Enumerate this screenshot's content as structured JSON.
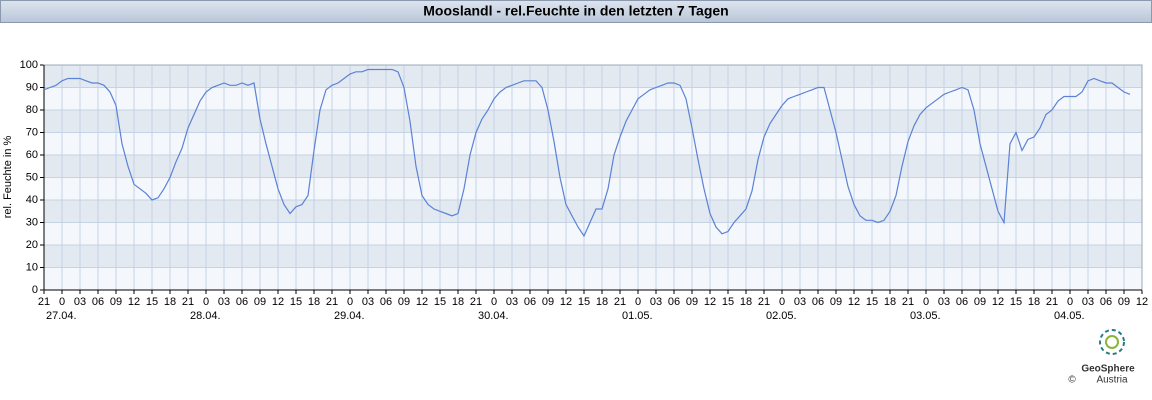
{
  "chart_data": {
    "type": "line",
    "title": "Mooslandl - rel.Feuchte in den letzten 7 Tagen",
    "ylabel": "rel. Feuchte in %",
    "color": "#5b82d6",
    "grid": true,
    "ylim": [
      0,
      100
    ],
    "yticks": [
      0,
      10,
      20,
      30,
      40,
      50,
      60,
      70,
      80,
      90,
      100
    ],
    "xlim": [
      "26.04. 21",
      "04.05. 12"
    ],
    "xticks": [
      {
        "value": "26.04. 21",
        "label": "21"
      },
      {
        "value": "27.04. 00",
        "label": "0"
      },
      {
        "value": "27.04. 03",
        "label": "03"
      },
      {
        "value": "27.04. 06",
        "label": "06"
      },
      {
        "value": "27.04. 09",
        "label": "09"
      },
      {
        "value": "27.04. 12",
        "label": "12"
      },
      {
        "value": "27.04. 15",
        "label": "15"
      },
      {
        "value": "27.04. 18",
        "label": "18"
      },
      {
        "value": "27.04. 21",
        "label": "21"
      },
      {
        "value": "28.04. 00",
        "label": "0"
      },
      {
        "value": "28.04. 03",
        "label": "03"
      },
      {
        "value": "28.04. 06",
        "label": "06"
      },
      {
        "value": "28.04. 09",
        "label": "09"
      },
      {
        "value": "28.04. 12",
        "label": "12"
      },
      {
        "value": "28.04. 15",
        "label": "15"
      },
      {
        "value": "28.04. 18",
        "label": "18"
      },
      {
        "value": "28.04. 21",
        "label": "21"
      },
      {
        "value": "29.04. 00",
        "label": "0"
      },
      {
        "value": "29.04. 03",
        "label": "03"
      },
      {
        "value": "29.04. 06",
        "label": "06"
      },
      {
        "value": "29.04. 09",
        "label": "09"
      },
      {
        "value": "29.04. 12",
        "label": "12"
      },
      {
        "value": "29.04. 15",
        "label": "15"
      },
      {
        "value": "29.04. 18",
        "label": "18"
      },
      {
        "value": "29.04. 21",
        "label": "21"
      },
      {
        "value": "30.04. 00",
        "label": "0"
      },
      {
        "value": "30.04. 03",
        "label": "03"
      },
      {
        "value": "30.04. 06",
        "label": "06"
      },
      {
        "value": "30.04. 09",
        "label": "09"
      },
      {
        "value": "30.04. 12",
        "label": "12"
      },
      {
        "value": "30.04. 15",
        "label": "15"
      },
      {
        "value": "30.04. 18",
        "label": "18"
      },
      {
        "value": "30.04. 21",
        "label": "21"
      },
      {
        "value": "01.05. 00",
        "label": "0"
      },
      {
        "value": "01.05. 03",
        "label": "03"
      },
      {
        "value": "01.05. 06",
        "label": "06"
      },
      {
        "value": "01.05. 09",
        "label": "09"
      },
      {
        "value": "01.05. 12",
        "label": "12"
      },
      {
        "value": "01.05. 15",
        "label": "15"
      },
      {
        "value": "01.05. 18",
        "label": "18"
      },
      {
        "value": "01.05. 21",
        "label": "21"
      },
      {
        "value": "02.05. 00",
        "label": "0"
      },
      {
        "value": "02.05. 03",
        "label": "03"
      },
      {
        "value": "02.05. 06",
        "label": "06"
      },
      {
        "value": "02.05. 09",
        "label": "09"
      },
      {
        "value": "02.05. 12",
        "label": "12"
      },
      {
        "value": "02.05. 15",
        "label": "15"
      },
      {
        "value": "02.05. 18",
        "label": "18"
      },
      {
        "value": "02.05. 21",
        "label": "21"
      },
      {
        "value": "03.05. 00",
        "label": "0"
      },
      {
        "value": "03.05. 03",
        "label": "03"
      },
      {
        "value": "03.05. 06",
        "label": "06"
      },
      {
        "value": "03.05. 09",
        "label": "09"
      },
      {
        "value": "03.05. 12",
        "label": "12"
      },
      {
        "value": "03.05. 15",
        "label": "15"
      },
      {
        "value": "03.05. 18",
        "label": "18"
      },
      {
        "value": "03.05. 21",
        "label": "21"
      },
      {
        "value": "04.05. 00",
        "label": "0"
      },
      {
        "value": "04.05. 03",
        "label": "03"
      },
      {
        "value": "04.05. 06",
        "label": "06"
      },
      {
        "value": "04.05. 09",
        "label": "09"
      },
      {
        "value": "04.05. 12",
        "label": "12"
      }
    ],
    "xdates": [
      {
        "value": "27.04. 00",
        "label": "27.04."
      },
      {
        "value": "28.04. 00",
        "label": "28.04."
      },
      {
        "value": "29.04. 00",
        "label": "29.04."
      },
      {
        "value": "30.04. 00",
        "label": "30.04."
      },
      {
        "value": "01.05. 00",
        "label": "01.05."
      },
      {
        "value": "02.05. 00",
        "label": "02.05."
      },
      {
        "value": "03.05. 00",
        "label": "03.05."
      },
      {
        "value": "04.05. 00",
        "label": "04.05."
      }
    ],
    "x": [
      "26.04. 21",
      "26.04. 22",
      "26.04. 23",
      "27.04. 00",
      "27.04. 01",
      "27.04. 02",
      "27.04. 03",
      "27.04. 04",
      "27.04. 05",
      "27.04. 06",
      "27.04. 07",
      "27.04. 08",
      "27.04. 09",
      "27.04. 10",
      "27.04. 11",
      "27.04. 12",
      "27.04. 13",
      "27.04. 14",
      "27.04. 15",
      "27.04. 16",
      "27.04. 17",
      "27.04. 18",
      "27.04. 19",
      "27.04. 20",
      "27.04. 21",
      "27.04. 22",
      "27.04. 23",
      "28.04. 00",
      "28.04. 01",
      "28.04. 02",
      "28.04. 03",
      "28.04. 04",
      "28.04. 05",
      "28.04. 06",
      "28.04. 07",
      "28.04. 08",
      "28.04. 09",
      "28.04. 10",
      "28.04. 11",
      "28.04. 12",
      "28.04. 13",
      "28.04. 14",
      "28.04. 15",
      "28.04. 16",
      "28.04. 17",
      "28.04. 18",
      "28.04. 19",
      "28.04. 20",
      "28.04. 21",
      "28.04. 22",
      "28.04. 23",
      "29.04. 00",
      "29.04. 01",
      "29.04. 02",
      "29.04. 03",
      "29.04. 04",
      "29.04. 05",
      "29.04. 06",
      "29.04. 07",
      "29.04. 08",
      "29.04. 09",
      "29.04. 10",
      "29.04. 11",
      "29.04. 12",
      "29.04. 13",
      "29.04. 14",
      "29.04. 15",
      "29.04. 16",
      "29.04. 17",
      "29.04. 18",
      "29.04. 19",
      "29.04. 20",
      "29.04. 21",
      "29.04. 22",
      "29.04. 23",
      "30.04. 00",
      "30.04. 01",
      "30.04. 02",
      "30.04. 03",
      "30.04. 04",
      "30.04. 05",
      "30.04. 06",
      "30.04. 07",
      "30.04. 08",
      "30.04. 09",
      "30.04. 10",
      "30.04. 11",
      "30.04. 12",
      "30.04. 13",
      "30.04. 14",
      "30.04. 15",
      "30.04. 16",
      "30.04. 17",
      "30.04. 18",
      "30.04. 19",
      "30.04. 20",
      "30.04. 21",
      "30.04. 22",
      "30.04. 23",
      "01.05. 00",
      "01.05. 01",
      "01.05. 02",
      "01.05. 03",
      "01.05. 04",
      "01.05. 05",
      "01.05. 06",
      "01.05. 07",
      "01.05. 08",
      "01.05. 09",
      "01.05. 10",
      "01.05. 11",
      "01.05. 12",
      "01.05. 13",
      "01.05. 14",
      "01.05. 15",
      "01.05. 16",
      "01.05. 17",
      "01.05. 18",
      "01.05. 19",
      "01.05. 20",
      "01.05. 21",
      "01.05. 22",
      "01.05. 23",
      "02.05. 00",
      "02.05. 01",
      "02.05. 02",
      "02.05. 03",
      "02.05. 04",
      "02.05. 05",
      "02.05. 06",
      "02.05. 07",
      "02.05. 08",
      "02.05. 09",
      "02.05. 10",
      "02.05. 11",
      "02.05. 12",
      "02.05. 13",
      "02.05. 14",
      "02.05. 15",
      "02.05. 16",
      "02.05. 17",
      "02.05. 18",
      "02.05. 19",
      "02.05. 20",
      "02.05. 21",
      "02.05. 22",
      "02.05. 23",
      "03.05. 00",
      "03.05. 01",
      "03.05. 02",
      "03.05. 03",
      "03.05. 04",
      "03.05. 05",
      "03.05. 06",
      "03.05. 07",
      "03.05. 08",
      "03.05. 09",
      "03.05. 10",
      "03.05. 11",
      "03.05. 12",
      "03.05. 13",
      "03.05. 14",
      "03.05. 15",
      "03.05. 16",
      "03.05. 17",
      "03.05. 18",
      "03.05. 19",
      "03.05. 20",
      "03.05. 21",
      "03.05. 22",
      "03.05. 23",
      "04.05. 00",
      "04.05. 01",
      "04.05. 02",
      "04.05. 03",
      "04.05. 04",
      "04.05. 05",
      "04.05. 06",
      "04.05. 07",
      "04.05. 08",
      "04.05. 09",
      "04.05. 10"
    ],
    "values": [
      89,
      90,
      91,
      93,
      94,
      94,
      94,
      93,
      92,
      92,
      91,
      88,
      82,
      65,
      55,
      47,
      45,
      43,
      40,
      41,
      45,
      50,
      57,
      63,
      72,
      78,
      84,
      88,
      90,
      91,
      92,
      91,
      91,
      92,
      91,
      92,
      76,
      65,
      55,
      45,
      38,
      34,
      37,
      38,
      42,
      62,
      80,
      89,
      91,
      92,
      94,
      96,
      97,
      97,
      98,
      98,
      98,
      98,
      98,
      97,
      90,
      75,
      55,
      42,
      38,
      36,
      35,
      34,
      33,
      34,
      45,
      60,
      70,
      76,
      80,
      85,
      88,
      90,
      91,
      92,
      93,
      93,
      93,
      90,
      80,
      66,
      50,
      38,
      33,
      28,
      24,
      30,
      36,
      36,
      45,
      60,
      68,
      75,
      80,
      85,
      87,
      89,
      90,
      91,
      92,
      92,
      91,
      85,
      72,
      58,
      45,
      34,
      28,
      25,
      26,
      30,
      33,
      36,
      44,
      58,
      68,
      74,
      78,
      82,
      85,
      86,
      87,
      88,
      89,
      90,
      90,
      80,
      70,
      58,
      46,
      38,
      33,
      31,
      31,
      30,
      31,
      35,
      42,
      55,
      66,
      73,
      78,
      81,
      83,
      85,
      87,
      88,
      89,
      90,
      89,
      80,
      65,
      55,
      45,
      35,
      30,
      65,
      70,
      62,
      67,
      68,
      72,
      78,
      80,
      84,
      86,
      86,
      86,
      88,
      93,
      94,
      93,
      92,
      92,
      90,
      88,
      87
    ]
  },
  "logo": {
    "name": "GeoSphere",
    "sub": "Austria",
    "copyright": "©"
  }
}
